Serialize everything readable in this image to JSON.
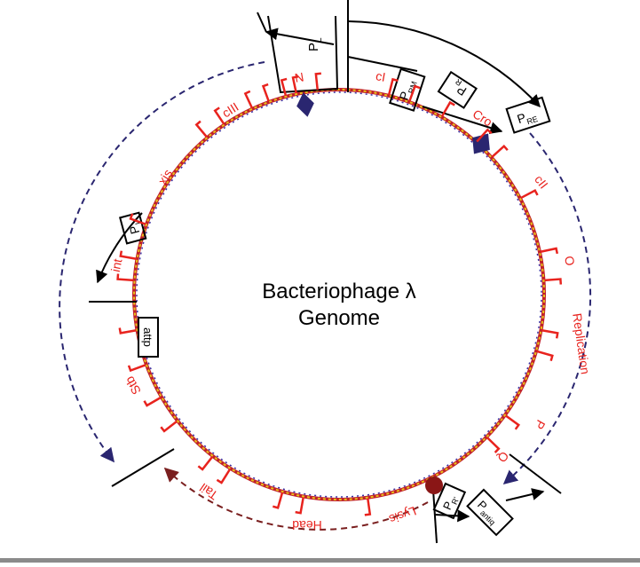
{
  "diagram": {
    "title_line1": "Bacteriophage λ",
    "title_line2": "Genome",
    "genes": [
      "N",
      "cI",
      "Cro",
      "cII",
      "O",
      "Replication",
      "P",
      "Q",
      "Lysis",
      "Head",
      "Tail",
      "Stb",
      "int",
      "xis",
      "cIII"
    ],
    "site": "attp",
    "promoters": {
      "PL": {
        "main": "P",
        "sub": "L"
      },
      "PRM": {
        "main": "P",
        "sub": "RM"
      },
      "PR": {
        "main": "P",
        "sub": "R"
      },
      "PRE": {
        "main": "P",
        "sub": "RE"
      },
      "PI": {
        "main": "P",
        "sub": "I"
      },
      "PR2": {
        "main": "P",
        "sub": "R'"
      },
      "Pantiq": {
        "main": "P",
        "sub": "antiq"
      }
    },
    "colors": {
      "gene_label": "#e8231e",
      "ring_outer": "#c0202a",
      "ring_inner": "#3a2fa0",
      "ring_yellow": "#e8c21a",
      "navy_arrow": "#2a2670",
      "maroon_arrow": "#7a1f1f",
      "diamond": "#2a2670",
      "dot": "#8a1616",
      "black": "#000000"
    }
  }
}
